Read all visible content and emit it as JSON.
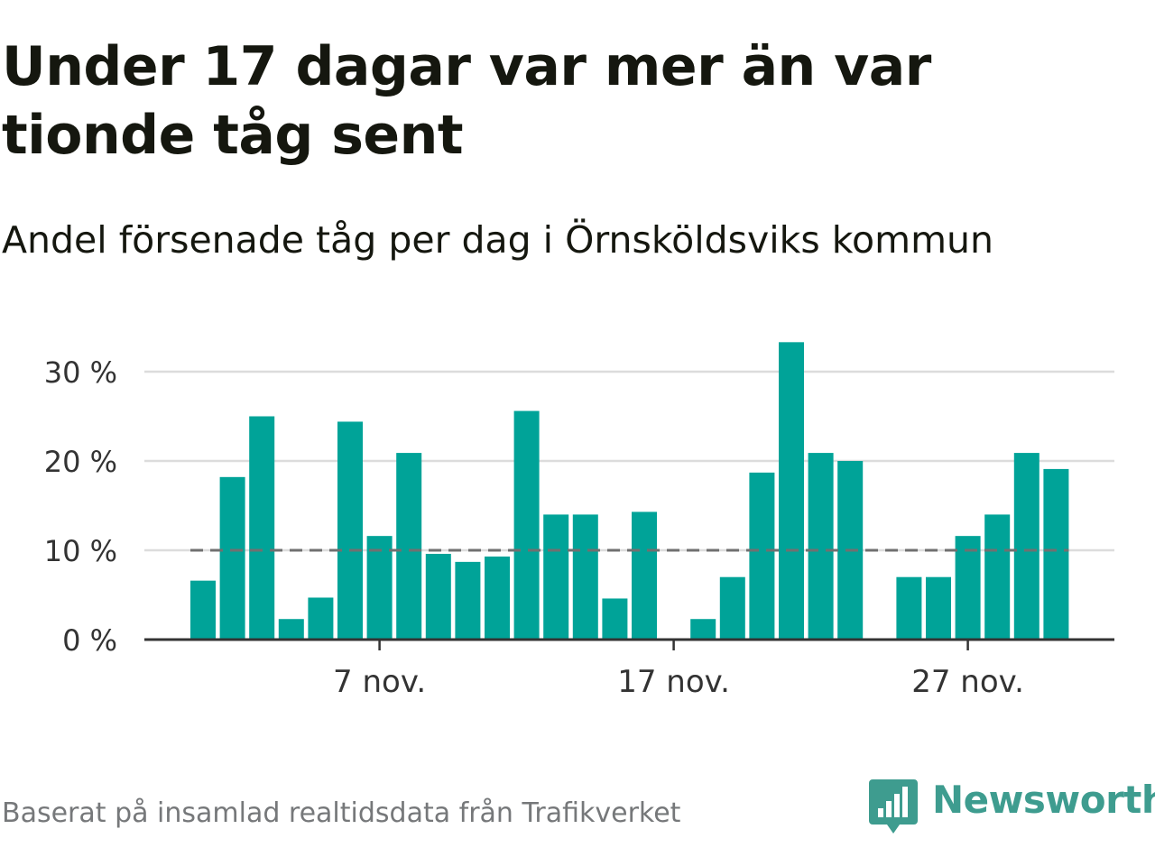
{
  "title": "Under 17 dagar var mer än var tionde tåg sent",
  "subtitle": "Andel försenade tåg per dag i Örnsköldsviks kommun",
  "footer": "Baserat på insamlad realtidsdata från Trafikverket",
  "brand": "Newsworthy",
  "colors": {
    "bar": "#00a398",
    "grid": "#dcdcdc",
    "axis": "#333333",
    "reference_line": "#707070",
    "brand": "#3e9c8f"
  },
  "chart_data": {
    "type": "bar",
    "categories": [
      "1 nov.",
      "2 nov.",
      "3 nov.",
      "4 nov.",
      "5 nov.",
      "6 nov.",
      "7 nov.",
      "8 nov.",
      "9 nov.",
      "10 nov.",
      "11 nov.",
      "12 nov.",
      "13 nov.",
      "14 nov.",
      "15 nov.",
      "16 nov.",
      "17 nov.",
      "18 nov.",
      "19 nov.",
      "20 nov.",
      "21 nov.",
      "22 nov.",
      "23 nov.",
      "24 nov.",
      "25 nov.",
      "26 nov.",
      "27 nov.",
      "28 nov.",
      "29 nov.",
      "30 nov."
    ],
    "values": [
      6.6,
      18.2,
      25.0,
      2.3,
      4.7,
      24.4,
      11.6,
      20.9,
      9.6,
      8.7,
      9.3,
      25.6,
      14.0,
      14.0,
      4.6,
      14.3,
      0,
      2.3,
      7.0,
      18.7,
      33.3,
      20.9,
      20.0,
      0,
      7.0,
      7.0,
      11.6,
      14.0,
      20.9,
      19.1
    ],
    "reference_line": {
      "value": 10,
      "style": "dashed"
    },
    "ylim": [
      0,
      33.3
    ],
    "yticks": [
      0,
      10,
      20,
      30
    ],
    "ytick_labels": [
      "0 %",
      "10 %",
      "20 %",
      "30 %"
    ],
    "xticks": [
      "7 nov.",
      "17 nov.",
      "27 nov."
    ],
    "grid": true
  }
}
